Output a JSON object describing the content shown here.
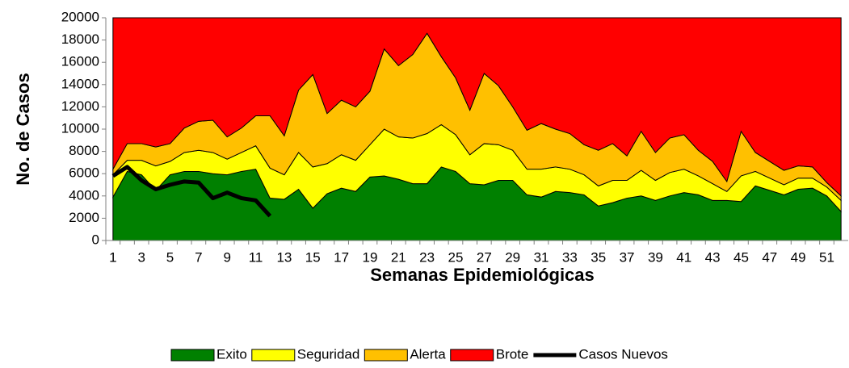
{
  "chart_data": {
    "type": "stacked_area_line",
    "y_label": "No. de Casos",
    "x_label": "Semanas Epidemiológicas",
    "categories": [
      1,
      null,
      3,
      null,
      5,
      null,
      7,
      null,
      9,
      null,
      11,
      null,
      13,
      null,
      15,
      null,
      17,
      null,
      19,
      null,
      21,
      null,
      23,
      null,
      25,
      null,
      27,
      null,
      29,
      null,
      31,
      null,
      33,
      null,
      35,
      null,
      37,
      null,
      39,
      null,
      41,
      null,
      43,
      null,
      45,
      null,
      47,
      null,
      49,
      null,
      51,
      null
    ],
    "ylim": [
      0,
      20000
    ],
    "yticks": [
      0,
      2000,
      4000,
      6000,
      8000,
      10000,
      12000,
      14000,
      16000,
      18000,
      20000
    ],
    "series": [
      {
        "name": "Exito",
        "color": "#008000",
        "kind": "area",
        "values": [
          3900,
          6200,
          5900,
          4500,
          5900,
          6200,
          6200,
          6000,
          5900,
          6200,
          6400,
          3800,
          3700,
          4600,
          2900,
          4200,
          4700,
          4400,
          5700,
          5800,
          5500,
          5100,
          5100,
          6600,
          6200,
          5100,
          5000,
          5400,
          5400,
          4100,
          3900,
          4400,
          4300,
          4100,
          3100,
          3400,
          3800,
          4000,
          3600,
          4000,
          4300,
          4100,
          3600,
          3600,
          3500,
          4900,
          4500,
          4100,
          4600,
          4700,
          4000,
          2600
        ]
      },
      {
        "name": "Seguridad",
        "color": "#ffff00",
        "kind": "area",
        "values": [
          2000,
          1000,
          1300,
          2200,
          1200,
          1700,
          1900,
          1900,
          1400,
          1700,
          2100,
          2700,
          2200,
          3300,
          3700,
          2700,
          3000,
          2800,
          2900,
          4200,
          3800,
          4100,
          4500,
          3800,
          3300,
          2600,
          3700,
          3200,
          2700,
          2300,
          2500,
          2200,
          2100,
          1800,
          1800,
          2000,
          1600,
          2300,
          1800,
          2100,
          2100,
          1700,
          1500,
          800,
          2300,
          1300,
          1100,
          900,
          1000,
          900,
          800,
          1000
        ]
      },
      {
        "name": "Alerta",
        "color": "#ffc000",
        "kind": "area",
        "values": [
          500,
          1500,
          1500,
          1700,
          1600,
          2200,
          2600,
          2900,
          2000,
          2200,
          2700,
          4700,
          3500,
          5600,
          8300,
          4500,
          4900,
          4800,
          4800,
          7200,
          6400,
          7500,
          9000,
          6100,
          5100,
          4000,
          6300,
          5300,
          3900,
          3500,
          4100,
          3400,
          3200,
          2700,
          3200,
          3300,
          2200,
          3500,
          2500,
          3100,
          3100,
          2300,
          2000,
          900,
          4000,
          1700,
          1500,
          1300,
          1100,
          1000,
          400,
          400
        ]
      },
      {
        "name": "Brote",
        "color": "#ff0000",
        "kind": "area",
        "values": [
          13600,
          11300,
          11300,
          11600,
          11300,
          9900,
          9300,
          9200,
          10700,
          9900,
          8800,
          8800,
          10600,
          6500,
          5100,
          8600,
          7400,
          8000,
          6600,
          2800,
          4300,
          3300,
          1400,
          3500,
          5400,
          8300,
          5000,
          6100,
          8000,
          10100,
          9500,
          10000,
          10400,
          11400,
          11900,
          11300,
          12400,
          10200,
          12100,
          10800,
          10500,
          11900,
          12900,
          14700,
          10200,
          12100,
          12900,
          13700,
          13300,
          13400,
          14800,
          16000
        ]
      },
      {
        "name": "Casos Nuevos",
        "color": "#000000",
        "kind": "line",
        "values": [
          5800,
          6600,
          5400,
          4600,
          5000,
          5300,
          5200,
          3800,
          4300,
          3800,
          3600,
          2200,
          null,
          null,
          null,
          null,
          null,
          null,
          null,
          null,
          null,
          null,
          null,
          null,
          null,
          null,
          null,
          null,
          null,
          null,
          null,
          null,
          null,
          null,
          null,
          null,
          null,
          null,
          null,
          null,
          null,
          null,
          null,
          null,
          null,
          null,
          null,
          null,
          null,
          null,
          null,
          null
        ]
      }
    ]
  }
}
